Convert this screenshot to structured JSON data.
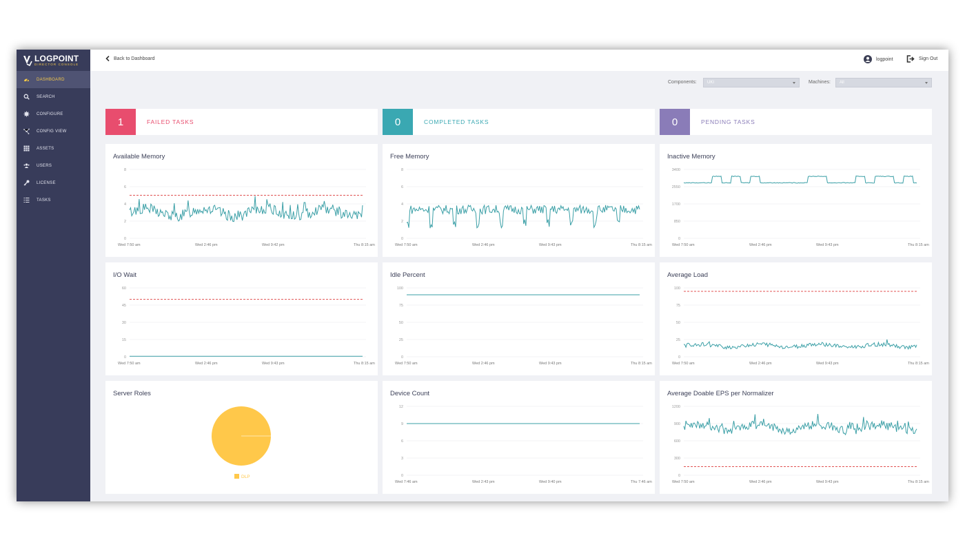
{
  "app": {
    "brand": "LOGPOINT",
    "subtitle": "DIRECTOR CONSOLE"
  },
  "sidebar": {
    "items": [
      {
        "label": "DASHBOARD",
        "icon": "dashboard-icon",
        "active": true
      },
      {
        "label": "SEARCH",
        "icon": "search-icon",
        "active": false
      },
      {
        "label": "CONFIGURE",
        "icon": "gear-icon",
        "active": false
      },
      {
        "label": "CONFIG VIEW",
        "icon": "network-icon",
        "active": false
      },
      {
        "label": "ASSETS",
        "icon": "grid-icon",
        "active": false
      },
      {
        "label": "USERS",
        "icon": "users-icon",
        "active": false
      },
      {
        "label": "LICENSE",
        "icon": "key-icon",
        "active": false
      },
      {
        "label": "TASKS",
        "icon": "list-icon",
        "active": false
      }
    ]
  },
  "header": {
    "back_label": "Back to Dashboard",
    "username": "logpoint",
    "signout_label": "Sign Out"
  },
  "filters": {
    "components_label": "Components:",
    "components_value": "UKI",
    "machines_label": "Machines:",
    "machines_value": "All"
  },
  "tasks": [
    {
      "count": "1",
      "label": "FAILED TASKS",
      "color": "#e84d6e"
    },
    {
      "count": "0",
      "label": "COMPLETED TASKS",
      "color": "#3aa8b2"
    },
    {
      "count": "0",
      "label": "PENDING TASKS",
      "color": "#8a7cb8"
    }
  ],
  "colors": {
    "line": "#3a9fa6",
    "threshold": "#e05050",
    "pie": "#ffc84a",
    "grid": "#e8e8ec"
  },
  "chart_data": [
    {
      "type": "line",
      "title": "Available Memory",
      "yticks": [
        "8",
        "6",
        "4",
        "2",
        "0"
      ],
      "ylim": [
        0,
        8
      ],
      "xticks": [
        "Wed 7:50 am",
        "Wed 2:46 pm",
        "Wed 9:42 pm",
        "Thu 8:15 am"
      ],
      "threshold": 5,
      "base": 3,
      "pattern": "noisy",
      "amp": 1.3
    },
    {
      "type": "line",
      "title": "Free Memory",
      "yticks": [
        "8",
        "6",
        "4",
        "2",
        "0"
      ],
      "ylim": [
        0,
        8
      ],
      "xticks": [
        "Wed 7:50 am",
        "Wed 2:46 pm",
        "Wed 9:43 pm",
        "Thu 8:15 am"
      ],
      "threshold": null,
      "base": 2.9,
      "pattern": "cycle",
      "amp": 1.5
    },
    {
      "type": "line",
      "title": "Inactive Memory",
      "yticks": [
        "3400",
        "2550",
        "1700",
        "850",
        "0"
      ],
      "ylim": [
        0,
        3400
      ],
      "xticks": [
        "Wed 7:50 am",
        "Wed 2:46 pm",
        "Wed 9:43 pm",
        "Thu 8:15 am"
      ],
      "threshold": null,
      "base": 2900,
      "pattern": "steps",
      "amp": 160
    },
    {
      "type": "line",
      "title": "I/O Wait",
      "yticks": [
        "60",
        "45",
        "30",
        "15",
        "0"
      ],
      "ylim": [
        0,
        60
      ],
      "xticks": [
        "Wed 7:50 am",
        "Wed 2:46 pm",
        "Wed 9:43 pm",
        "Thu 8:15 am"
      ],
      "threshold": 50,
      "base": 0.5,
      "pattern": "flat",
      "amp": 0
    },
    {
      "type": "line",
      "title": "Idle Percent",
      "yticks": [
        "100",
        "75",
        "50",
        "25",
        "0"
      ],
      "ylim": [
        0,
        100
      ],
      "xticks": [
        "Wed 7:50 am",
        "Wed 2:46 pm",
        "Wed 9:43 pm",
        "Thu 8:15 am"
      ],
      "threshold": null,
      "base": 90,
      "pattern": "flat",
      "amp": 0
    },
    {
      "type": "line",
      "title": "Average Load",
      "yticks": [
        "100",
        "75",
        "50",
        "25",
        "0"
      ],
      "ylim": [
        0,
        100
      ],
      "xticks": [
        "Wed 7:50 am",
        "Wed 2:46 pm",
        "Wed 9:43 pm",
        "Thu 8:15 am"
      ],
      "threshold": 95,
      "base": 16,
      "pattern": "noisy",
      "amp": 6
    },
    {
      "type": "pie",
      "title": "Server Roles",
      "slices": [
        {
          "name": "DLP",
          "value": 100
        }
      ]
    },
    {
      "type": "line",
      "title": "Device Count",
      "yticks": [
        "12",
        "9",
        "6",
        "3",
        "0"
      ],
      "ylim": [
        0,
        12
      ],
      "xticks": [
        "Wed 7:46 am",
        "Wed 2:43 pm",
        "Wed 9:40 pm",
        "Thu 7:46 am"
      ],
      "threshold": null,
      "base": 9,
      "pattern": "flat",
      "amp": 0
    },
    {
      "type": "line",
      "title": "Average Doable EPS per Normalizer",
      "yticks": [
        "1200",
        "900",
        "600",
        "300",
        "0"
      ],
      "ylim": [
        0,
        1200
      ],
      "xticks": [
        "Wed 7:50 am",
        "Wed 2:46 pm",
        "Wed 9:43 pm",
        "Thu 8:15 am"
      ],
      "threshold": 150,
      "base": 830,
      "pattern": "noisy",
      "amp": 150
    }
  ]
}
